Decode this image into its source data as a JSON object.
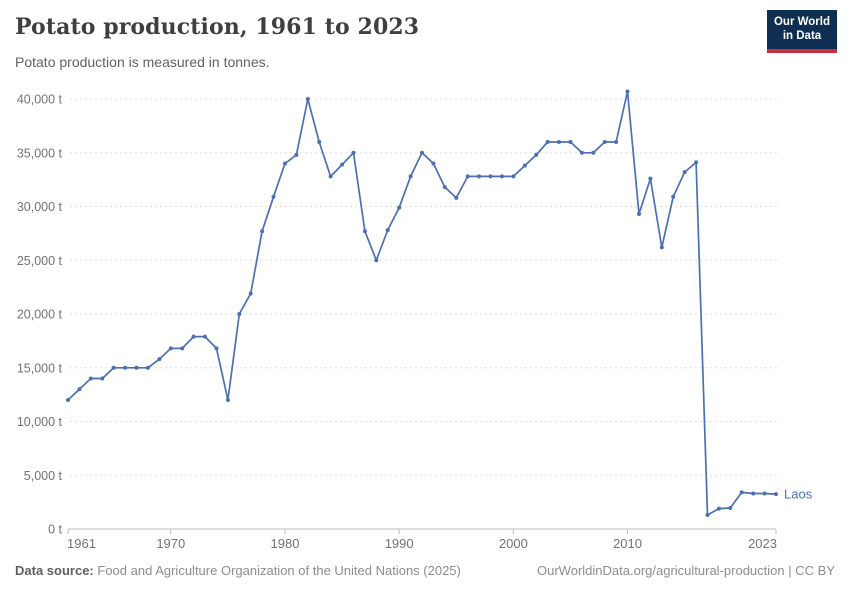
{
  "header": {
    "title": "Potato production, 1961 to 2023",
    "subtitle": "Potato production is measured in tonnes.",
    "logo": {
      "line1": "Our World",
      "line2": "in Data"
    }
  },
  "footer": {
    "source_label": "Data source:",
    "source_text": "Food and Agriculture Organization of the United Nations (2025)",
    "link": "OurWorldinData.org/agricultural-production",
    "separator": "|",
    "license": "CC BY"
  },
  "colors": {
    "line": "#4C6FB1",
    "grid": "#dedede",
    "axis": "#bdbdbd",
    "tick_label": "#737373",
    "logo_bg": "#0E2E52",
    "logo_accent": "#C5313F"
  },
  "chart_data": {
    "type": "line",
    "title": "Potato production, 1961 to 2023",
    "subtitle": "Potato production is measured in tonnes.",
    "entity": "Laos",
    "series_label": "Laos",
    "unit": "tonnes",
    "xlim": [
      1961,
      2023
    ],
    "ylim": [
      0,
      40000
    ],
    "grid": "horizontal-dashed",
    "legend_position": "end-of-line",
    "x_ticks": [
      1961,
      1970,
      1980,
      1990,
      2000,
      2010,
      2023
    ],
    "x_tick_labels": [
      "1961",
      "1970",
      "1980",
      "1990",
      "2000",
      "2010",
      "2023"
    ],
    "y_ticks": [
      0,
      5000,
      10000,
      15000,
      20000,
      25000,
      30000,
      35000,
      40000
    ],
    "y_tick_labels": [
      "0 t",
      "5,000 t",
      "10,000 t",
      "15,000 t",
      "20,000 t",
      "25,000 t",
      "30,000 t",
      "35,000 t",
      "40,000 t"
    ],
    "x": [
      1961,
      1962,
      1963,
      1964,
      1965,
      1966,
      1967,
      1968,
      1969,
      1970,
      1971,
      1972,
      1973,
      1974,
      1975,
      1976,
      1977,
      1978,
      1979,
      1980,
      1981,
      1982,
      1983,
      1984,
      1985,
      1986,
      1987,
      1988,
      1989,
      1990,
      1991,
      1992,
      1993,
      1994,
      1995,
      1996,
      1997,
      1998,
      1999,
      2000,
      2001,
      2002,
      2003,
      2004,
      2005,
      2006,
      2007,
      2008,
      2009,
      2010,
      2011,
      2012,
      2013,
      2014,
      2015,
      2016,
      2017,
      2018,
      2019,
      2020,
      2021,
      2022,
      2023
    ],
    "values": [
      12000,
      13000,
      14000,
      14000,
      15000,
      15000,
      15000,
      15000,
      15800,
      16800,
      16800,
      17900,
      17900,
      16800,
      12000,
      20000,
      21900,
      27700,
      30900,
      34000,
      34800,
      40000,
      36000,
      32800,
      33900,
      35000,
      27700,
      25000,
      27800,
      29900,
      32800,
      35000,
      34000,
      31800,
      30800,
      32800,
      32800,
      32800,
      32800,
      32800,
      33800,
      34800,
      36000,
      36000,
      36000,
      35000,
      35000,
      36000,
      36000,
      40700,
      29300,
      32600,
      26200,
      30900,
      33200,
      34100,
      1300,
      1900,
      1950,
      3400,
      3300,
      3300,
      3250
    ]
  }
}
